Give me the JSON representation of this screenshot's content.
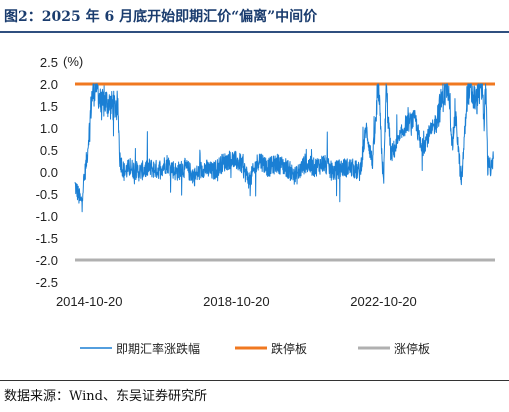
{
  "title": "图2：2025 年 6 月底开始即期汇价“偏离”中间价",
  "source": "数据来源：Wind、东吴证券研究所",
  "chart_data": {
    "type": "line",
    "ylabel": "(%)",
    "ylim": [
      -2.5,
      2.5
    ],
    "yticks": [
      "2.5",
      "2.0",
      "1.5",
      "1.0",
      "0.5",
      "0.0",
      "-0.5",
      "-1.0",
      "-1.5",
      "-2.0",
      "-2.5"
    ],
    "xticks": [
      "2014-10-20",
      "2018-10-20",
      "2022-10-20"
    ],
    "xlim": [
      "2014-06-01",
      "2025-10-31"
    ],
    "colors": {
      "spot": "#1a7fd4",
      "lower": "#f07820",
      "upper": "#b0b0b0"
    },
    "legend_position": "bottom",
    "series": [
      {
        "name": "即期汇率涨跌幅",
        "x": [
          "2014-06-01",
          "2014-08-01",
          "2014-10-01",
          "2014-11-15",
          "2015-01-01",
          "2015-02-15",
          "2015-04-01",
          "2015-06-01",
          "2015-08-01",
          "2015-08-20",
          "2015-10-01",
          "2015-12-01",
          "2016-03-01",
          "2016-06-01",
          "2016-09-01",
          "2016-12-01",
          "2017-03-01",
          "2017-06-01",
          "2017-09-01",
          "2017-12-01",
          "2018-03-01",
          "2018-06-01",
          "2018-09-01",
          "2018-12-01",
          "2019-03-01",
          "2019-06-01",
          "2019-09-01",
          "2019-12-01",
          "2020-03-01",
          "2020-06-01",
          "2020-09-01",
          "2020-12-01",
          "2021-03-01",
          "2021-06-01",
          "2021-09-01",
          "2021-12-01",
          "2022-03-01",
          "2022-05-01",
          "2022-07-01",
          "2022-09-01",
          "2022-10-20",
          "2022-11-15",
          "2023-01-01",
          "2023-03-01",
          "2023-06-01",
          "2023-09-01",
          "2023-11-01",
          "2024-01-01",
          "2024-03-01",
          "2024-06-01",
          "2024-08-01",
          "2024-09-01",
          "2024-10-01",
          "2024-12-01",
          "2025-02-01",
          "2025-04-01",
          "2025-05-01",
          "2025-06-01",
          "2025-06-30",
          "2025-07-15",
          "2025-08-01",
          "2025-08-20",
          "2025-09-01",
          "2025-09-20",
          "2025-10-15"
        ],
        "values": [
          -0.3,
          -0.7,
          0.4,
          1.7,
          2.0,
          1.5,
          1.6,
          1.5,
          1.5,
          0.3,
          0.0,
          0.1,
          0.0,
          0.1,
          0.05,
          0.2,
          0.0,
          0.1,
          -0.1,
          0.1,
          0.0,
          0.2,
          0.3,
          0.2,
          -0.2,
          0.3,
          0.1,
          0.2,
          0.1,
          -0.1,
          0.2,
          0.1,
          0.2,
          0.0,
          0.1,
          0.1,
          0.0,
          1.0,
          0.2,
          1.9,
          -0.3,
          1.9,
          0.4,
          0.6,
          1.1,
          1.2,
          0.5,
          0.8,
          1.0,
          1.7,
          2.0,
          0.5,
          1.4,
          -0.3,
          1.9,
          1.7,
          1.6,
          1.9,
          2.0,
          1.0,
          2.0,
          0.1,
          0.3,
          0.0,
          0.3
        ]
      },
      {
        "name": "跌停板",
        "value": 2.0
      },
      {
        "name": "涨停板",
        "value": -2.0
      }
    ]
  }
}
